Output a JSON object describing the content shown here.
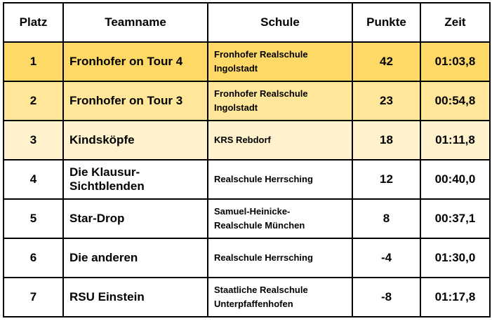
{
  "headers": [
    "Platz",
    "Teamname",
    "Schule",
    "Punkte",
    "Zeit"
  ],
  "rows": [
    {
      "platz": "1",
      "team": "Fronhofer on Tour 4",
      "schule": [
        "Fronhofer Realschule",
        "Ingolstadt"
      ],
      "punkte": "42",
      "zeit": "01:03,8",
      "bg": "#FFD966"
    },
    {
      "platz": "2",
      "team": "Fronhofer on Tour 3",
      "schule": [
        "Fronhofer Realschule",
        "Ingolstadt"
      ],
      "punkte": "23",
      "zeit": "00:54,8",
      "bg": "#FFE699"
    },
    {
      "platz": "3",
      "team": "Kindsköpfe",
      "schule": [
        "KRS Rebdorf"
      ],
      "punkte": "18",
      "zeit": "01:11,8",
      "bg": "#FFF2CC"
    },
    {
      "platz": "4",
      "team": "Die Klausur-Sichtblenden",
      "schule": [
        "Realschule Herrsching"
      ],
      "punkte": "12",
      "zeit": "00:40,0",
      "bg": "#FFFFFF"
    },
    {
      "platz": "5",
      "team": "Star-Drop",
      "schule": [
        "Samuel-Heinicke-",
        "Realschule München"
      ],
      "punkte": "8",
      "zeit": "00:37,1",
      "bg": "#FFFFFF"
    },
    {
      "platz": "6",
      "team": "Die anderen",
      "schule": [
        "Realschule Herrsching"
      ],
      "punkte": "-4",
      "zeit": "01:30,0",
      "bg": "#FFFFFF"
    },
    {
      "platz": "7",
      "team": "RSU Einstein",
      "schule": [
        "Staatliche Realschule",
        "Unterpfaffenhofen"
      ],
      "punkte": "-8",
      "zeit": "01:17,8",
      "bg": "#FFFFFF"
    }
  ]
}
